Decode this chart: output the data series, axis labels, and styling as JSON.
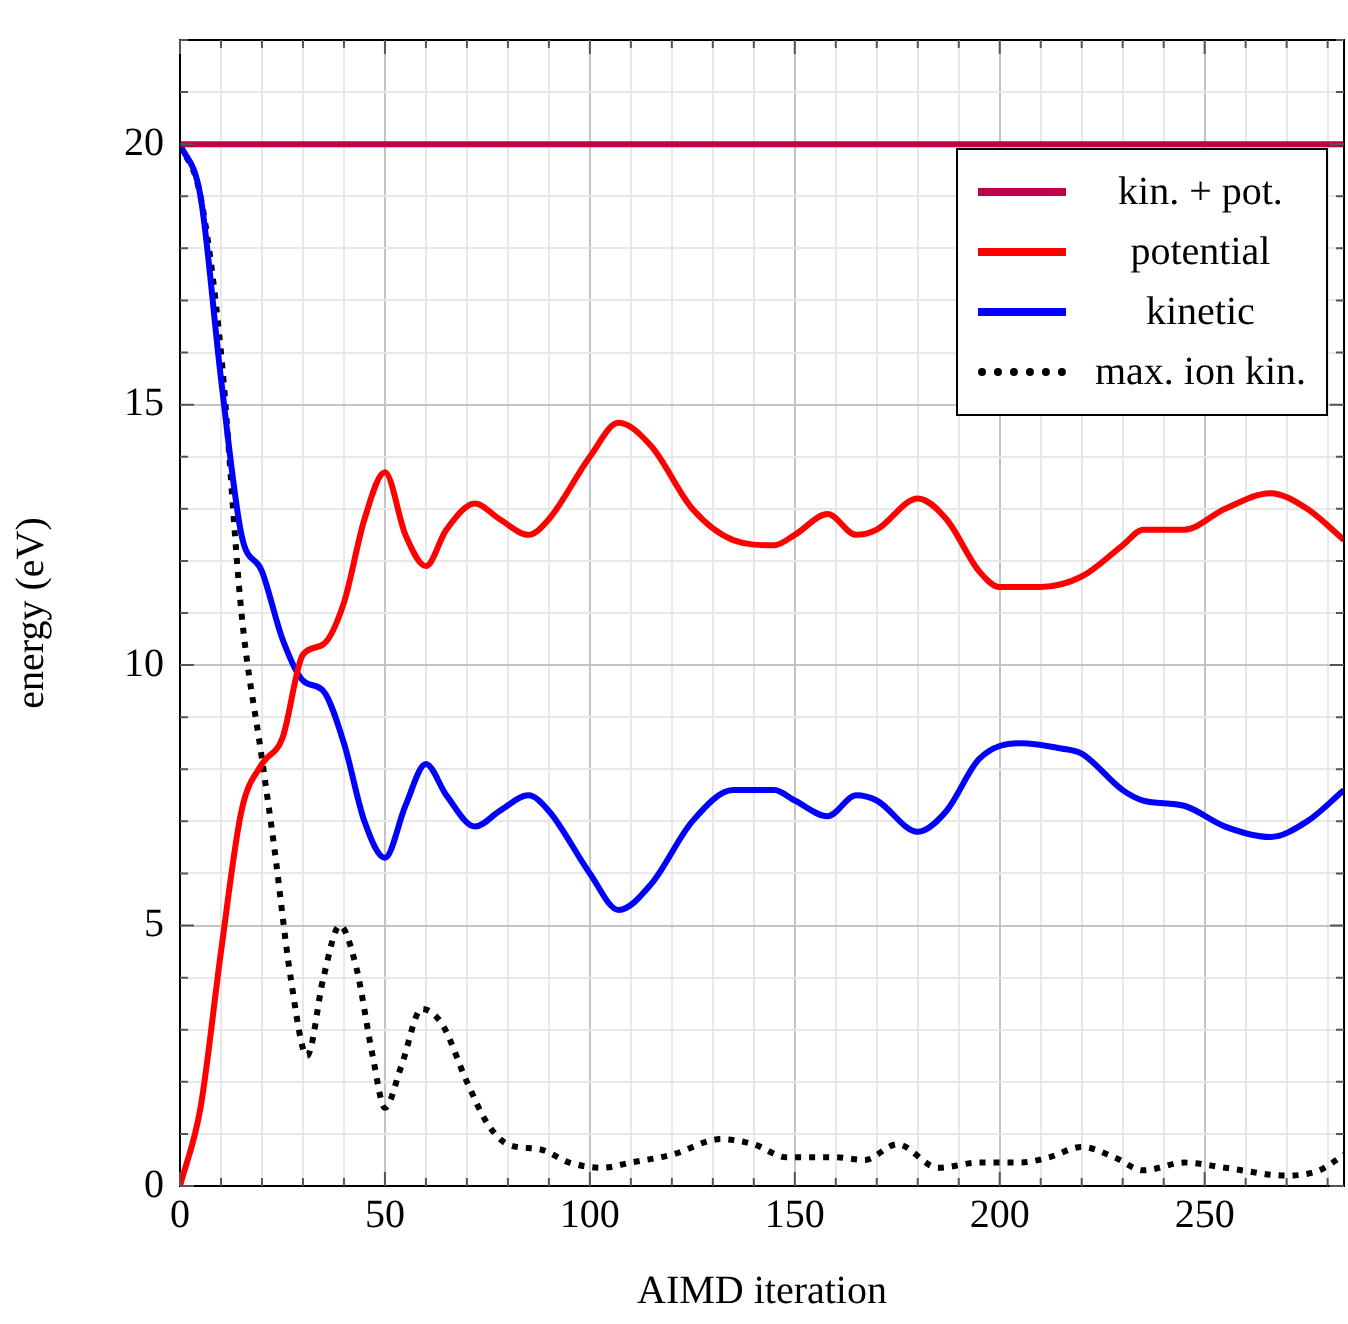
{
  "chart_data": {
    "type": "line",
    "xlabel": "AIMD iteration",
    "ylabel": "energy (eV)",
    "xlim": [
      0,
      284
    ],
    "ylim": [
      0,
      22
    ],
    "xticks": [
      0,
      {
        "value": 10,
        "label": null
      },
      {
        "value": 20,
        "label": null
      },
      {
        "value": 30,
        "label": null
      },
      {
        "value": 40,
        "label": null
      },
      50,
      {
        "value": 60,
        "label": null
      },
      {
        "value": 70,
        "label": null
      },
      {
        "value": 80,
        "label": null
      },
      {
        "value": 90,
        "label": null
      },
      100,
      {
        "value": 110,
        "label": null
      },
      {
        "value": 120,
        "label": null
      },
      {
        "value": 130,
        "label": null
      },
      {
        "value": 140,
        "label": null
      },
      150,
      {
        "value": 160,
        "label": null
      },
      {
        "value": 170,
        "label": null
      },
      {
        "value": 180,
        "label": null
      },
      {
        "value": 190,
        "label": null
      },
      200,
      {
        "value": 210,
        "label": null
      },
      {
        "value": 220,
        "label": null
      },
      {
        "value": 230,
        "label": null
      },
      {
        "value": 240,
        "label": null
      },
      250,
      {
        "value": 260,
        "label": null
      },
      {
        "value": 270,
        "label": null
      },
      {
        "value": 280,
        "label": null
      }
    ],
    "yticks": [
      0,
      {
        "value": 1,
        "label": null
      },
      {
        "value": 2,
        "label": null
      },
      {
        "value": 3,
        "label": null
      },
      {
        "value": 4,
        "label": null
      },
      5,
      {
        "value": 6,
        "label": null
      },
      {
        "value": 7,
        "label": null
      },
      {
        "value": 8,
        "label": null
      },
      {
        "value": 9,
        "label": null
      },
      10,
      {
        "value": 11,
        "label": null
      },
      {
        "value": 12,
        "label": null
      },
      {
        "value": 13,
        "label": null
      },
      {
        "value": 14,
        "label": null
      },
      15,
      {
        "value": 16,
        "label": null
      },
      {
        "value": 17,
        "label": null
      },
      {
        "value": 18,
        "label": null
      },
      {
        "value": 19,
        "label": null
      },
      20,
      {
        "value": 21,
        "label": null
      },
      {
        "value": 22,
        "label": null
      }
    ],
    "grid": true,
    "legend": "top right",
    "marker": "none",
    "series": [
      {
        "name": "kin. + pot.",
        "color": "#c0004a",
        "line_style": "solid",
        "x": [
          0,
          50,
          100,
          150,
          200,
          250,
          284
        ],
        "values": [
          20,
          20,
          20,
          20,
          20,
          20,
          20
        ]
      },
      {
        "name": "potential",
        "color": "#ff0000",
        "line_style": "solid",
        "x": [
          0,
          5,
          10,
          15,
          20,
          25,
          30,
          35,
          40,
          45,
          50,
          55,
          60,
          65,
          72,
          78,
          85,
          90,
          100,
          107,
          115,
          125,
          135,
          145,
          150,
          158,
          165,
          170,
          180,
          187,
          195,
          200,
          210,
          220,
          230,
          235,
          245,
          255,
          266,
          275,
          284
        ],
        "values": [
          0,
          1.5,
          4.5,
          7.2,
          8.1,
          8.6,
          10.2,
          10.4,
          11.2,
          12.8,
          13.7,
          12.5,
          11.9,
          12.6,
          13.1,
          12.8,
          12.5,
          12.8,
          14.0,
          14.65,
          14.2,
          13.0,
          12.4,
          12.3,
          12.5,
          12.9,
          12.5,
          12.6,
          13.2,
          12.8,
          11.8,
          11.5,
          11.5,
          11.7,
          12.3,
          12.6,
          12.6,
          13.0,
          13.3,
          13.0,
          12.4
        ]
      },
      {
        "name": "kinetic",
        "color": "#0000ff",
        "line_style": "solid",
        "x": [
          0,
          5,
          10,
          15,
          20,
          25,
          30,
          35,
          40,
          45,
          50,
          55,
          60,
          65,
          72,
          78,
          85,
          90,
          100,
          107,
          115,
          125,
          135,
          145,
          150,
          158,
          165,
          170,
          180,
          187,
          195,
          205,
          215,
          220,
          230,
          235,
          245,
          255,
          266,
          275,
          284
        ],
        "values": [
          20,
          19.0,
          15.5,
          12.5,
          11.8,
          10.5,
          9.7,
          9.5,
          8.5,
          7.0,
          6.3,
          7.3,
          8.1,
          7.5,
          6.9,
          7.2,
          7.5,
          7.2,
          6.0,
          5.3,
          5.8,
          7.0,
          7.6,
          7.6,
          7.4,
          7.1,
          7.5,
          7.4,
          6.8,
          7.2,
          8.2,
          8.5,
          8.4,
          8.3,
          7.6,
          7.4,
          7.3,
          6.9,
          6.7,
          7.0,
          7.6
        ]
      },
      {
        "name": "max. ion kin.",
        "color": "#000000",
        "line_style": "dotted",
        "x": [
          0,
          5,
          10,
          15,
          20,
          23,
          27,
          31,
          35,
          39,
          43,
          47,
          50,
          54,
          59,
          64,
          70,
          75,
          80,
          88,
          95,
          103,
          110,
          120,
          132,
          140,
          148,
          160,
          167,
          175,
          185,
          195,
          205,
          212,
          220,
          228,
          235,
          245,
          255,
          270,
          278,
          284
        ],
        "values": [
          20,
          19,
          16,
          11,
          8.2,
          6.5,
          4,
          2.5,
          4.0,
          5.0,
          4.2,
          2.5,
          1.5,
          2.3,
          3.4,
          3.1,
          2.0,
          1.2,
          0.8,
          0.7,
          0.45,
          0.35,
          0.45,
          0.6,
          0.9,
          0.8,
          0.55,
          0.55,
          0.5,
          0.8,
          0.35,
          0.45,
          0.45,
          0.55,
          0.75,
          0.55,
          0.3,
          0.45,
          0.35,
          0.2,
          0.3,
          0.6
        ]
      }
    ]
  }
}
